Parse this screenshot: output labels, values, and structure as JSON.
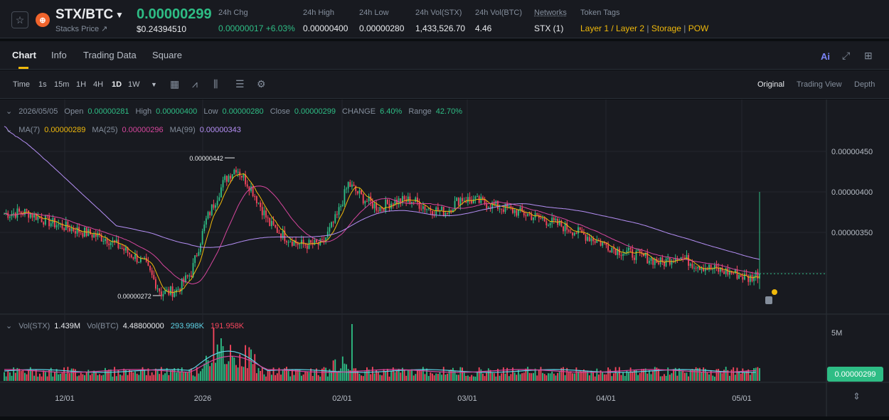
{
  "header": {
    "pair": "STX/BTC",
    "subtitle": "Stacks Price ↗",
    "last_price": "0.00000299",
    "usd_price": "$0.24394510",
    "stats": [
      {
        "label": "24h Chg",
        "value": "0.00000017 +6.03%",
        "tone": "green"
      },
      {
        "label": "24h High",
        "value": "0.00000400",
        "tone": "white"
      },
      {
        "label": "24h Low",
        "value": "0.00000280",
        "tone": "white"
      },
      {
        "label": "24h Vol(STX)",
        "value": "1,433,526.70",
        "tone": "white"
      },
      {
        "label": "24h Vol(BTC)",
        "value": "4.46",
        "tone": "white"
      },
      {
        "label": "Networks",
        "value": "STX (1)",
        "tone": "white"
      }
    ],
    "token_tags_label": "Token Tags",
    "token_tags": [
      "Layer 1 / Layer 2",
      "Storage",
      "POW"
    ]
  },
  "tabs": [
    "Chart",
    "Info",
    "Trading Data",
    "Square"
  ],
  "ai_label": "Ai",
  "toolbar": {
    "timeframes": [
      "Time",
      "1s",
      "15m",
      "1H",
      "4H",
      "1D",
      "1W"
    ],
    "active_timeframe": "1D",
    "views": [
      "Original",
      "Trading View",
      "Depth"
    ],
    "active_view": "Original"
  },
  "ohlc_legend": {
    "date": "2026/05/05",
    "open_label": "Open",
    "open": "0.00000281",
    "high_label": "High",
    "high": "0.00000400",
    "low_label": "Low",
    "low": "0.00000280",
    "close_label": "Close",
    "close": "0.00000299",
    "change_label": "CHANGE",
    "change": "6.40%",
    "range_label": "Range",
    "range": "42.70%"
  },
  "ma_legend": {
    "ma7_label": "MA(7)",
    "ma7": "0.00000289",
    "ma25_label": "MA(25)",
    "ma25": "0.00000296",
    "ma99_label": "MA(99)",
    "ma99": "0.00000343"
  },
  "vol_legend": {
    "vol_stx_label": "Vol(STX)",
    "vol_stx": "1.439M",
    "vol_btc_label": "Vol(BTC)",
    "vol_btc": "4.48800000",
    "ma1": "293.998K",
    "ma2": "191.958K"
  },
  "chart_data": {
    "type": "candlestick",
    "price_axis_ticks": [
      "0.00000450",
      "0.00000400",
      "0.00000350"
    ],
    "price_axis_values": [
      4.5e-06,
      4e-06,
      3.5e-06
    ],
    "current_price_tag": "0.00000299",
    "high_marker": "0.00000442",
    "low_marker": "0.00000272",
    "volume_axis_tick": "5M",
    "date_axis_ticks": [
      "12/01",
      "2026",
      "02/01",
      "03/01",
      "04/01",
      "05/01"
    ],
    "colors": {
      "up": "#2ebd85",
      "down": "#f6465d",
      "ma7": "#f0b90b",
      "ma25": "#d6469d",
      "ma99": "#b58ff5",
      "vol_ma1": "#5ed3e6",
      "vol_ma2": "#d6469d"
    }
  }
}
